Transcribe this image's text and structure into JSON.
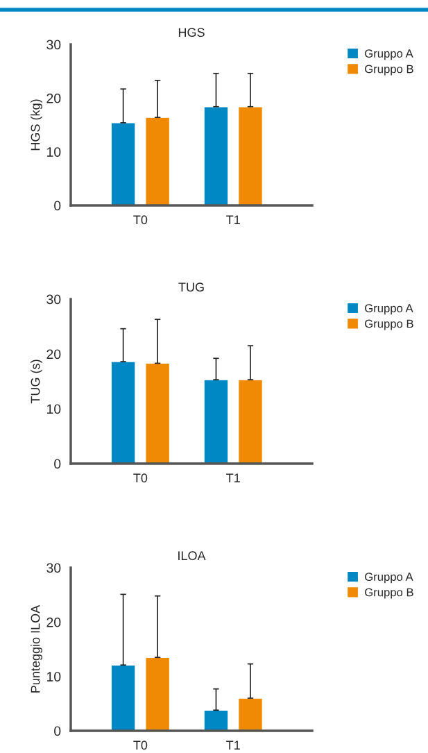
{
  "chart_data": [
    {
      "type": "bar",
      "title": "HGS",
      "ylabel": "HGS (kg)",
      "categories": [
        "T0",
        "T1"
      ],
      "ylim": [
        0,
        30
      ],
      "yticks": [
        0,
        10,
        20,
        30
      ],
      "legend": "top right",
      "grid": false,
      "series": [
        {
          "name": "Gruppo A",
          "color": "#0088c4",
          "values": [
            15.4,
            18.4
          ],
          "errors": [
            [
              15.4,
              21.7
            ],
            [
              18.4,
              24.6
            ]
          ]
        },
        {
          "name": "Gruppo B",
          "color": "#f08a05",
          "values": [
            16.4,
            18.4
          ],
          "errors": [
            [
              16.4,
              23.3
            ],
            [
              18.4,
              24.6
            ]
          ]
        }
      ]
    },
    {
      "type": "bar",
      "title": "TUG",
      "ylabel": "TUG (s)",
      "categories": [
        "T0",
        "T1"
      ],
      "ylim": [
        0,
        30
      ],
      "yticks": [
        0,
        10,
        20,
        30
      ],
      "legend": "top right",
      "grid": false,
      "series": [
        {
          "name": "Gruppo A",
          "color": "#0088c4",
          "values": [
            18.6,
            15.3
          ],
          "errors": [
            [
              18.6,
              24.6
            ],
            [
              15.3,
              19.2
            ]
          ]
        },
        {
          "name": "Gruppo B",
          "color": "#f08a05",
          "values": [
            18.3,
            15.3
          ],
          "errors": [
            [
              18.3,
              26.3
            ],
            [
              15.3,
              21.5
            ]
          ]
        }
      ]
    },
    {
      "type": "bar",
      "title": "ILOA",
      "ylabel": "Punteggio ILOA",
      "categories": [
        "T0",
        "T1"
      ],
      "ylim": [
        0,
        30
      ],
      "yticks": [
        0,
        10,
        20,
        30
      ],
      "legend": "top right",
      "grid": false,
      "series": [
        {
          "name": "Gruppo A",
          "color": "#0088c4",
          "values": [
            12.1,
            3.8
          ],
          "errors": [
            [
              12.1,
              25.1
            ],
            [
              3.8,
              7.7
            ]
          ]
        },
        {
          "name": "Gruppo B",
          "color": "#f08a05",
          "values": [
            13.5,
            6.0
          ],
          "errors": [
            [
              13.5,
              24.8
            ],
            [
              6.0,
              12.3
            ]
          ]
        }
      ]
    }
  ]
}
